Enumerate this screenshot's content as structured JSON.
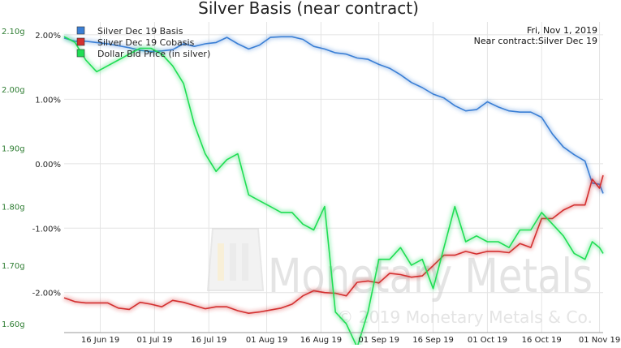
{
  "chart_data": {
    "type": "line",
    "title": "Silver Basis (near contract)",
    "date_label": "Fri, Nov 1, 2019",
    "near_contract_label": "Near contract:Silver Dec 19",
    "watermark_name": "Monetary Metals",
    "watermark_copyright": "© 2019 Monetary Metals & Co.",
    "x_ticks": [
      "16 Jun 19",
      "01 Jul 19",
      "16 Jul 19",
      "01 Aug 19",
      "16 Aug 19",
      "01 Sep 19",
      "16 Sep 19",
      "01 Oct 19",
      "16 Oct 19",
      "01 Nov 19"
    ],
    "x_tick_days": [
      16,
      31,
      46,
      62,
      77,
      93,
      108,
      123,
      138,
      154
    ],
    "x_range_days": [
      6,
      155
    ],
    "left_axis": {
      "ticks": [
        "2.10g",
        "2.00g",
        "1.90g",
        "1.80g",
        "1.70g",
        "1.60g"
      ],
      "values": [
        2.1,
        2.0,
        1.9,
        1.8,
        1.7,
        1.6
      ],
      "range": [
        1.585,
        2.115
      ],
      "color": "#2e7d32"
    },
    "right_axis": {
      "ticks": [
        "2.00%",
        "1.00%",
        "0.00%",
        "-1.00%",
        "-2.00%"
      ],
      "values": [
        2.0,
        1.0,
        0.0,
        -1.0,
        -2.0
      ],
      "range": [
        -2.62,
        2.2
      ]
    },
    "legend": {
      "placement": "top-left"
    },
    "series": [
      {
        "name": "Silver Dec 19 Basis",
        "color": "#3a7fd5",
        "axis": "right",
        "x": [
          6,
          9,
          12,
          15,
          18,
          21,
          24,
          27,
          30,
          33,
          36,
          39,
          42,
          45,
          48,
          51,
          54,
          57,
          60,
          63,
          66,
          69,
          72,
          75,
          78,
          81,
          84,
          87,
          90,
          93,
          96,
          99,
          102,
          105,
          108,
          111,
          114,
          117,
          120,
          123,
          126,
          129,
          132,
          135,
          138,
          141,
          144,
          147,
          150,
          152,
          154,
          155
        ],
        "y": [
          1.95,
          1.9,
          1.9,
          1.88,
          1.86,
          1.83,
          1.8,
          1.76,
          1.74,
          1.75,
          1.77,
          1.86,
          1.82,
          1.86,
          1.88,
          1.96,
          1.86,
          1.78,
          1.84,
          1.96,
          1.97,
          1.97,
          1.93,
          1.82,
          1.78,
          1.72,
          1.7,
          1.64,
          1.62,
          1.54,
          1.48,
          1.38,
          1.26,
          1.18,
          1.08,
          1.02,
          0.9,
          0.82,
          0.84,
          0.96,
          0.88,
          0.82,
          0.8,
          0.8,
          0.72,
          0.46,
          0.26,
          0.14,
          0.04,
          -0.3,
          -0.32,
          -0.46
        ]
      },
      {
        "name": "Silver Dec 19 Cobasis",
        "color": "#d32f2f",
        "axis": "right",
        "x": [
          6,
          9,
          12,
          15,
          18,
          21,
          24,
          27,
          30,
          33,
          36,
          39,
          42,
          45,
          48,
          51,
          54,
          57,
          60,
          63,
          66,
          69,
          72,
          75,
          78,
          81,
          84,
          87,
          90,
          93,
          96,
          99,
          102,
          105,
          108,
          111,
          114,
          117,
          120,
          123,
          126,
          129,
          132,
          135,
          138,
          141,
          144,
          147,
          150,
          152,
          154,
          155
        ],
        "y": [
          -2.08,
          -2.14,
          -2.16,
          -2.16,
          -2.16,
          -2.24,
          -2.26,
          -2.15,
          -2.18,
          -2.22,
          -2.12,
          -2.15,
          -2.2,
          -2.25,
          -2.22,
          -2.22,
          -2.28,
          -2.32,
          -2.3,
          -2.27,
          -2.24,
          -2.18,
          -2.05,
          -1.97,
          -2.0,
          -2.01,
          -2.05,
          -1.84,
          -1.82,
          -1.85,
          -1.7,
          -1.72,
          -1.76,
          -1.74,
          -1.58,
          -1.42,
          -1.42,
          -1.36,
          -1.4,
          -1.36,
          -1.36,
          -1.38,
          -1.24,
          -1.3,
          -0.85,
          -0.85,
          -0.72,
          -0.64,
          -0.64,
          -0.24,
          -0.38,
          -0.18
        ]
      },
      {
        "name": "Dollar Bid Price (in silver)",
        "color": "#1fde55",
        "axis": "left",
        "x": [
          6,
          9,
          12,
          15,
          18,
          21,
          24,
          27,
          30,
          33,
          36,
          39,
          42,
          45,
          48,
          51,
          54,
          57,
          60,
          63,
          66,
          69,
          72,
          75,
          78,
          81,
          84,
          87,
          90,
          93,
          96,
          99,
          102,
          105,
          108,
          111,
          114,
          117,
          120,
          123,
          126,
          129,
          132,
          135,
          138,
          141,
          144,
          147,
          150,
          152,
          154,
          155
        ],
        "y": [
          2.09,
          2.08,
          2.05,
          2.03,
          2.04,
          2.05,
          2.06,
          2.07,
          2.07,
          2.06,
          2.04,
          2.01,
          1.94,
          1.89,
          1.86,
          1.88,
          1.89,
          1.82,
          1.81,
          1.8,
          1.79,
          1.79,
          1.77,
          1.76,
          1.8,
          1.62,
          1.6,
          1.56,
          1.62,
          1.71,
          1.71,
          1.73,
          1.7,
          1.71,
          1.66,
          1.73,
          1.8,
          1.74,
          1.75,
          1.74,
          1.74,
          1.73,
          1.76,
          1.76,
          1.79,
          1.77,
          1.75,
          1.72,
          1.71,
          1.74,
          1.73,
          1.72
        ]
      }
    ]
  }
}
